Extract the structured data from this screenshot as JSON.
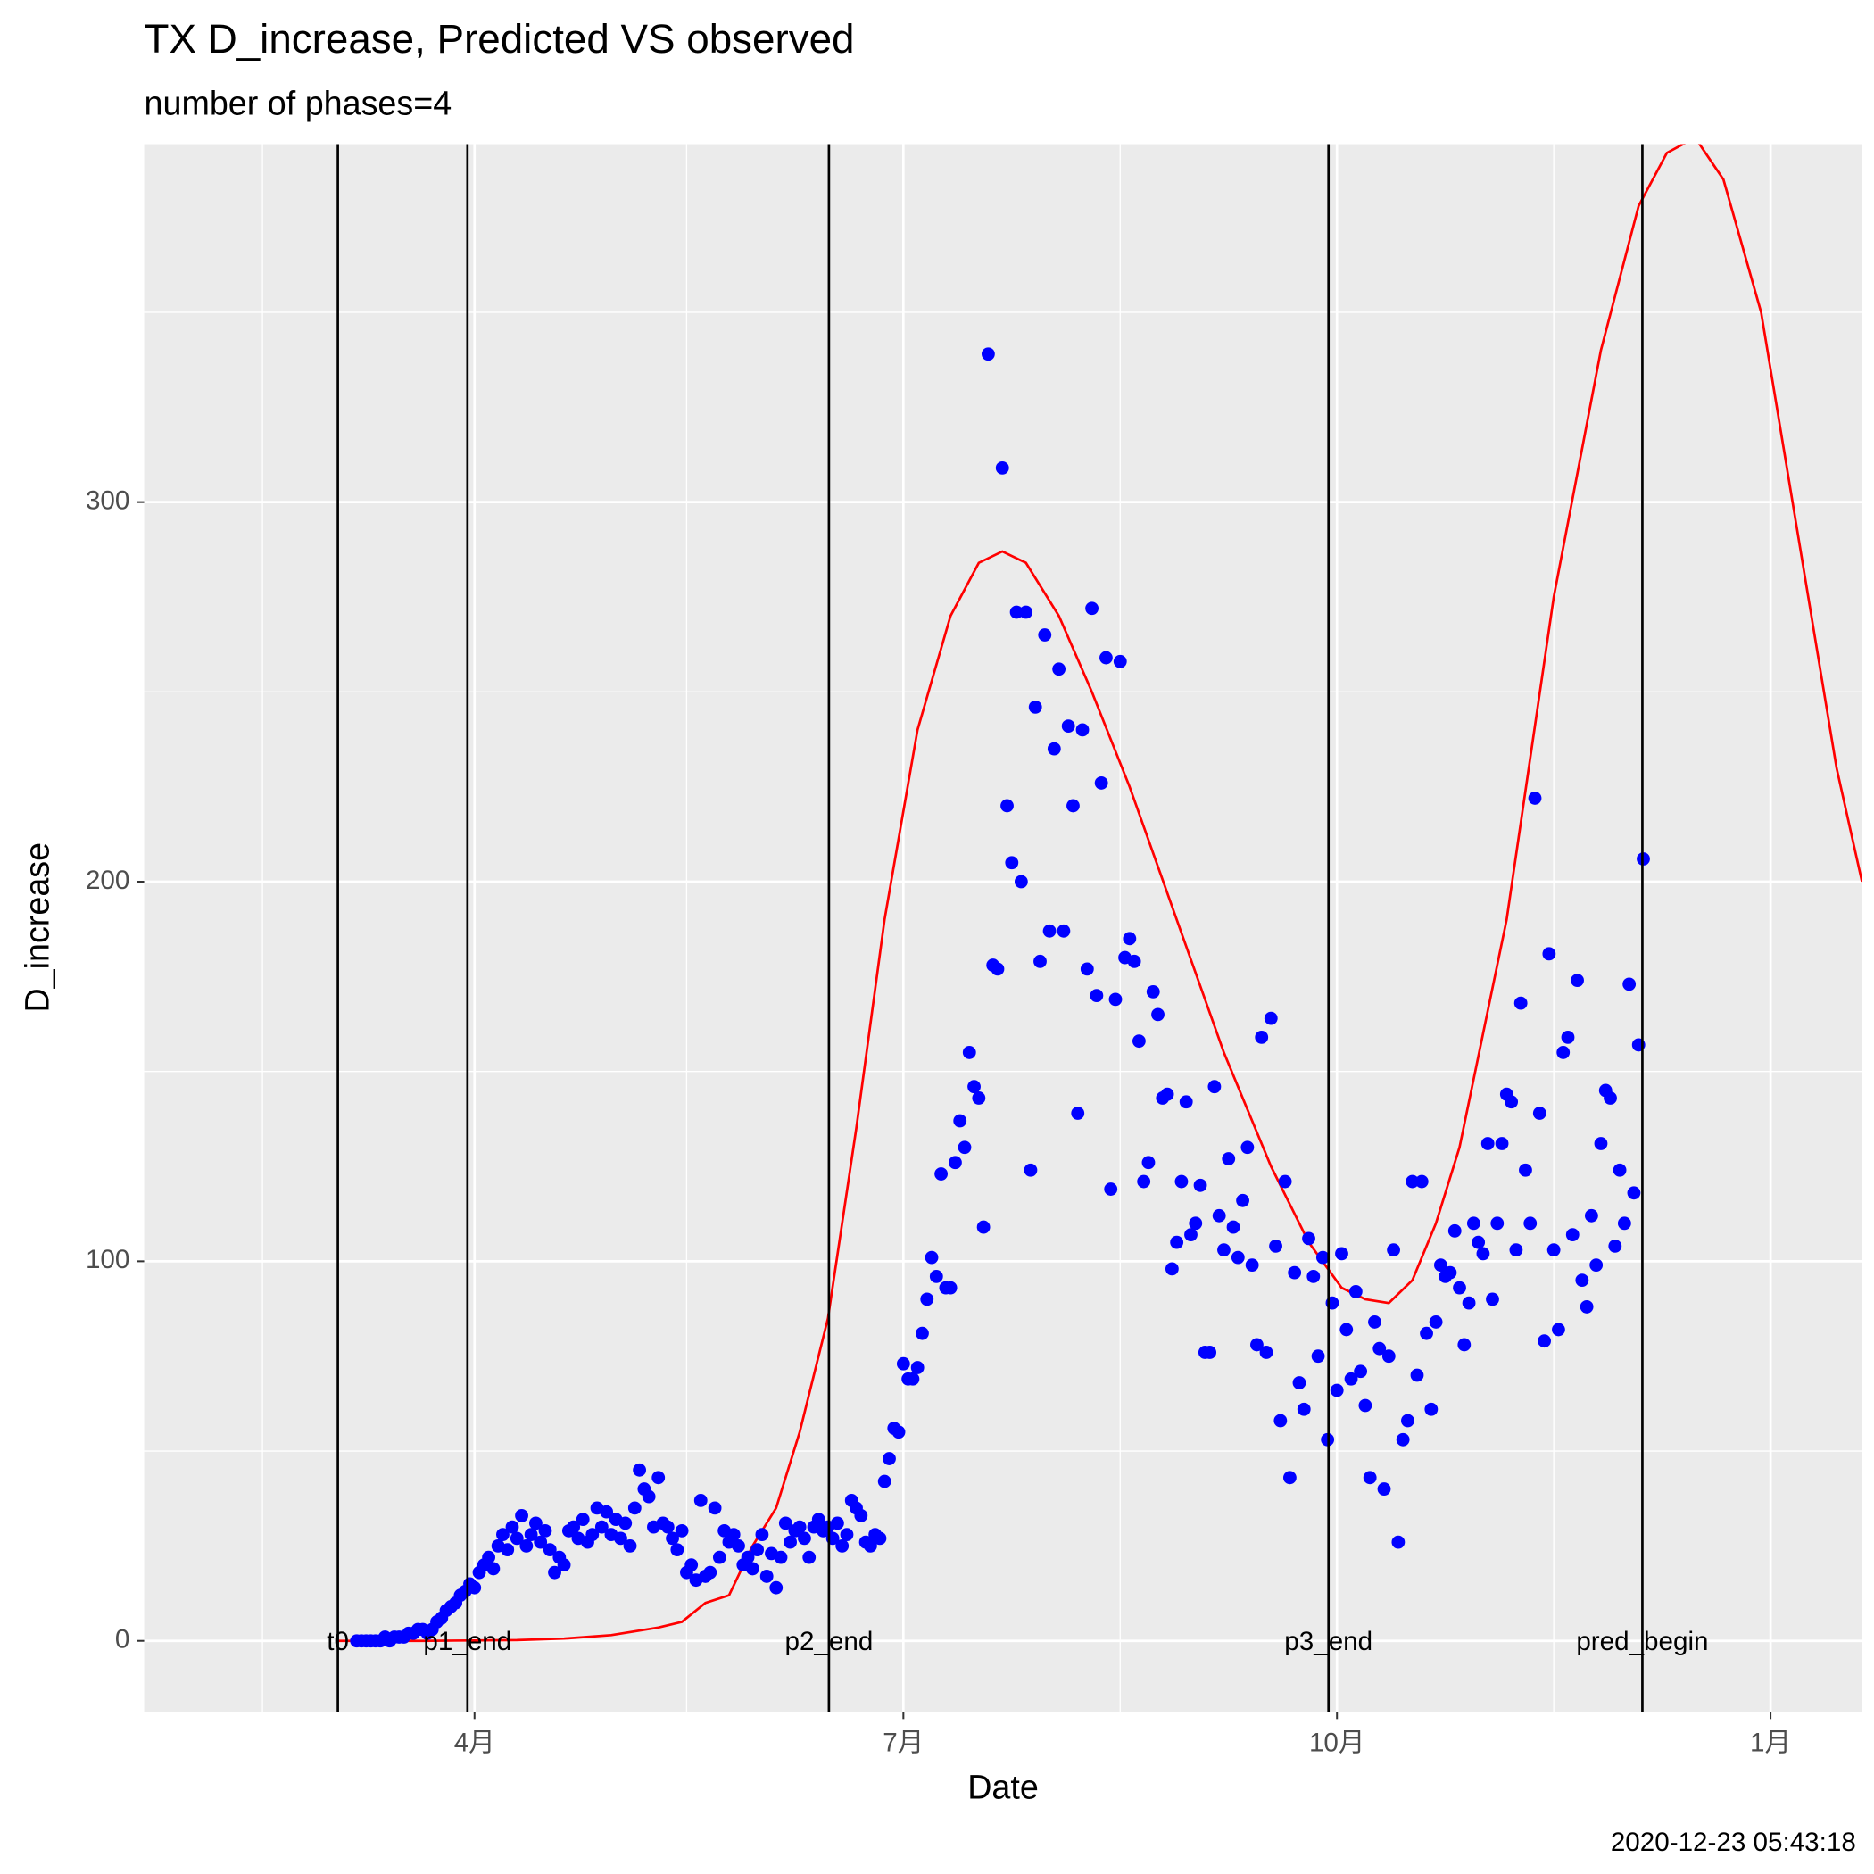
{
  "chart_data": {
    "type": "scatter",
    "title": "TX D_increase, Predicted VS observed",
    "subtitle": "number of phases=4",
    "xlabel": "Date",
    "ylabel": "D_increase",
    "caption": "2020-12-23 05:43:18",
    "xlim": [
      20.9,
      385.4
    ],
    "ylim": [
      -18.7,
      394.3
    ],
    "xticks": [
      {
        "value": 91,
        "label": "4月"
      },
      {
        "value": 182,
        "label": "7月"
      },
      {
        "value": 274,
        "label": "10月"
      },
      {
        "value": 366,
        "label": "1月"
      }
    ],
    "yticks": [
      0,
      100,
      200,
      300
    ],
    "x_minor_grid": [
      46,
      136,
      228,
      320
    ],
    "y_minor_grid": [
      50,
      150,
      250,
      350
    ],
    "grid": true,
    "points": {
      "color": "#0000ff",
      "x": [
        66,
        67,
        68,
        69,
        70,
        71,
        72,
        73,
        74,
        75,
        76,
        77,
        78,
        79,
        80,
        81,
        82,
        83,
        84,
        85,
        86,
        87,
        88,
        89,
        90,
        91,
        92,
        93,
        94,
        95,
        96,
        97,
        98,
        99,
        100,
        101,
        102,
        103,
        104,
        105,
        106,
        107,
        108,
        109,
        110,
        111,
        112,
        113,
        114,
        115,
        116,
        117,
        118,
        119,
        120,
        121,
        122,
        123,
        124,
        125,
        126,
        127,
        128,
        129,
        130,
        131,
        132,
        133,
        134,
        135,
        136,
        137,
        138,
        139,
        140,
        141,
        142,
        143,
        144,
        145,
        146,
        147,
        148,
        149,
        150,
        151,
        152,
        153,
        154,
        155,
        156,
        157,
        158,
        159,
        160,
        161,
        162,
        163,
        164,
        165,
        166,
        167,
        168,
        169,
        170,
        171,
        172,
        173,
        174,
        175,
        176,
        177,
        178,
        179,
        180,
        181,
        182,
        183,
        184,
        185,
        186,
        187,
        188,
        189,
        190,
        191,
        192,
        193,
        194,
        195,
        196,
        197,
        198,
        199,
        200,
        201,
        202,
        203,
        204,
        205,
        206,
        207,
        208,
        209,
        210,
        211,
        212,
        213,
        214,
        215,
        216,
        217,
        218,
        219,
        220,
        221,
        222,
        223,
        224,
        225,
        226,
        227,
        228,
        229,
        230,
        231,
        232,
        233,
        234,
        235,
        236,
        237,
        238,
        239,
        240,
        241,
        242,
        243,
        244,
        245,
        246,
        247,
        248,
        249,
        250,
        251,
        252,
        253,
        254,
        255,
        256,
        257,
        258,
        259,
        260,
        261,
        262,
        263,
        264,
        265,
        266,
        267,
        268,
        269,
        270,
        271,
        272,
        273,
        274,
        275,
        276,
        277,
        278,
        279,
        280,
        281,
        282,
        283,
        284,
        285,
        286,
        287,
        288,
        289,
        290,
        291,
        292,
        293,
        294,
        295,
        296,
        297,
        298,
        299,
        300,
        301,
        302,
        303,
        304,
        305,
        306,
        307,
        308,
        309,
        310,
        311,
        312,
        313,
        314,
        315,
        316,
        317,
        318,
        319,
        320,
        321,
        322,
        323,
        324,
        325,
        326,
        327,
        328,
        329,
        330,
        331,
        332,
        333,
        334,
        335,
        336,
        337,
        338,
        339
      ],
      "values": [
        0,
        0,
        0,
        0,
        0,
        0,
        1,
        0,
        1,
        1,
        1,
        2,
        2,
        3,
        3,
        2,
        3,
        5,
        6,
        8,
        9,
        10,
        12,
        13,
        15,
        14,
        18,
        20,
        22,
        19,
        25,
        28,
        24,
        30,
        27,
        33,
        25,
        28,
        31,
        26,
        29,
        24,
        18,
        22,
        20,
        29,
        30,
        27,
        32,
        26,
        28,
        35,
        30,
        34,
        28,
        32,
        27,
        31,
        25,
        35,
        45,
        40,
        38,
        30,
        43,
        31,
        30,
        27,
        24,
        29,
        18,
        20,
        16,
        37,
        17,
        18,
        35,
        22,
        29,
        26,
        28,
        25,
        20,
        22,
        19,
        24,
        28,
        17,
        23,
        14,
        22,
        31,
        26,
        29,
        30,
        27,
        22,
        30,
        32,
        29,
        30,
        27,
        31,
        25,
        28,
        37,
        35,
        33,
        26,
        25,
        28,
        27,
        42,
        48,
        56,
        55,
        73,
        69,
        69,
        72,
        81,
        90,
        101,
        96,
        123,
        93,
        93,
        126,
        137,
        130,
        155,
        146,
        143,
        109,
        339,
        178,
        177,
        309,
        220,
        205,
        271,
        200,
        271,
        124,
        246,
        179,
        265,
        187,
        235,
        256,
        187,
        241,
        220,
        139,
        240,
        177,
        272,
        170,
        226,
        259,
        119,
        169,
        258,
        180,
        185,
        179,
        158,
        121,
        126,
        171,
        165,
        143,
        144,
        98,
        105,
        121,
        142,
        107,
        110,
        120,
        76,
        76,
        146,
        112,
        103,
        127,
        109,
        101,
        116,
        130,
        99,
        78,
        159,
        76,
        164,
        104,
        58,
        121,
        43,
        97,
        68,
        61,
        106,
        96,
        75,
        101,
        53,
        89,
        66,
        102,
        82,
        69,
        92,
        71,
        62,
        43,
        84,
        77,
        40,
        75,
        103,
        26,
        53,
        58,
        121,
        70,
        121,
        81,
        61,
        84,
        99,
        96,
        97,
        108,
        93,
        78,
        89,
        110,
        105,
        102,
        131,
        90,
        110,
        131,
        144,
        142,
        103,
        168,
        124,
        110,
        222,
        139,
        79,
        181,
        103,
        82,
        155,
        159,
        107,
        174,
        95,
        88,
        112,
        99,
        131,
        145,
        143,
        104,
        124,
        110,
        173,
        118,
        157,
        206
      ]
    },
    "line": {
      "color": "#ff0000",
      "x": [
        62,
        70,
        80,
        90,
        100,
        110,
        120,
        125,
        130,
        135,
        140,
        145,
        150,
        155,
        160,
        166,
        172,
        178,
        185,
        192,
        198,
        203,
        208,
        215,
        222,
        230,
        240,
        250,
        260,
        268,
        275,
        280,
        285,
        290,
        295,
        300,
        310,
        320,
        330,
        338,
        344,
        350,
        356,
        364,
        372,
        380,
        385.4
      ],
      "values": [
        0,
        0,
        0,
        0.1,
        0.2,
        0.6,
        1.5,
        2.5,
        3.5,
        5,
        10,
        12,
        25,
        35,
        55,
        85,
        135,
        190,
        240,
        270,
        284,
        287,
        284,
        270,
        250,
        225,
        190,
        155,
        125,
        105,
        93,
        90,
        89,
        95,
        110,
        130,
        190,
        275,
        340,
        378,
        392,
        396,
        385,
        350,
        290,
        230,
        200
      ]
    },
    "vlines": [
      {
        "x": 62,
        "label": "t0"
      },
      {
        "x": 89.5,
        "label": "p1_end"
      },
      {
        "x": 166.2,
        "label": "p2_end"
      },
      {
        "x": 272.2,
        "label": "p3_end"
      },
      {
        "x": 338.8,
        "label": "pred_begin"
      }
    ]
  }
}
